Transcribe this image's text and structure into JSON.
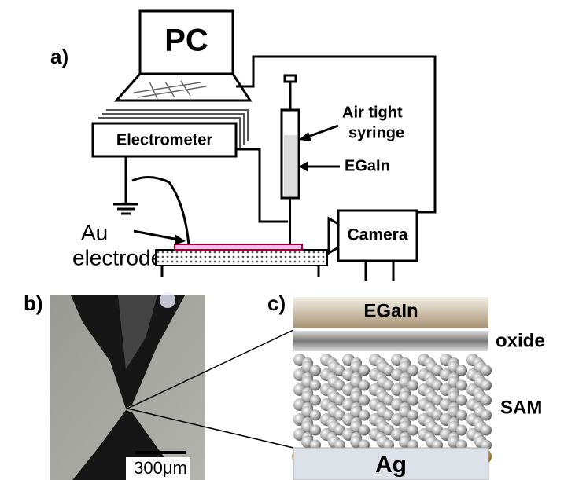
{
  "panels": {
    "a": {
      "label": "a)",
      "pc": "PC",
      "electrometer": "Electrometer",
      "syringe": [
        "Air tight",
        "syringe"
      ],
      "egain": "EGaIn",
      "electrode": [
        "Au",
        "electrode"
      ],
      "camera": "Camera"
    },
    "b": {
      "label": "b)",
      "scale_bar": "300μm"
    },
    "c": {
      "label": "c)",
      "egain": "EGaIn",
      "oxide": "oxide",
      "sam": "SAM",
      "ag": "Ag"
    }
  }
}
